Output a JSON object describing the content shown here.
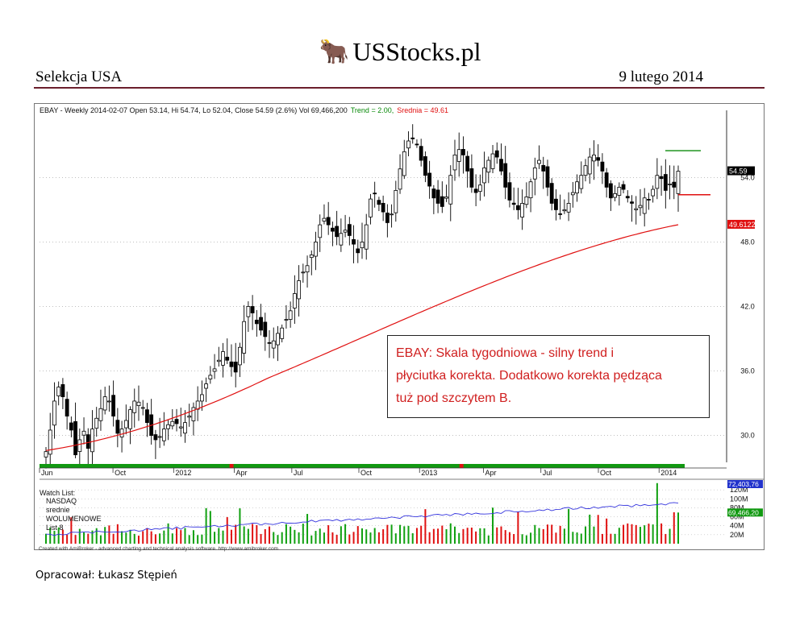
{
  "header": {
    "logo_text": "USStocks.pl",
    "left_title": "Selekcja USA",
    "date": "9 lutego 2014"
  },
  "footer": {
    "author": "Opracował: Łukasz Stępień"
  },
  "colors": {
    "trend": "#0a8a0a",
    "srednia": "#e01010",
    "rule": "#6b1f2c",
    "note_text": "#d02020",
    "volume_line": "#3333dd"
  },
  "chart_data": {
    "type": "candlestick",
    "header": {
      "symbol_line": "EBAY - Weekly 2014-02-07 Open 53.14, Hi 54.74, Lo 52.04, Close 54.59 (2.6%) Vol 69,466,200",
      "trend_text": "Trend = 2.00,",
      "srednia_text": "Srednia = 49.61"
    },
    "y_ticks": [
      30.0,
      36.0,
      42.0,
      48.0,
      54.0
    ],
    "y_tick_labels": [
      "30.0",
      "36.0",
      "42.0",
      "48.0",
      "54.0"
    ],
    "ylim": [
      27.5,
      59.5
    ],
    "x_labels": [
      "Jun",
      "Oct",
      "2012",
      "Apr",
      "Jul",
      "Oct",
      "2013",
      "Apr",
      "Jul",
      "Oct",
      "2014"
    ],
    "price_tag": "54.59",
    "ma_tag": "49.6122",
    "note": {
      "line1": "EBAY: Skala tygodniowa -  silny trend i",
      "line2": "płyciutka korekta. Dodatkowo korekta pędząca",
      "line3": "tuż pod szczytem B."
    },
    "closes": [
      28.5,
      30.5,
      33.2,
      34.5,
      33.6,
      31.8,
      30.5,
      28.2,
      29.6,
      30.4,
      28.8,
      30.6,
      31.6,
      32.5,
      33.6,
      33.2,
      31.8,
      30.2,
      30.6,
      31.4,
      32.4,
      33.2,
      33.1,
      32.6,
      31.2,
      30.0,
      29.6,
      29.9,
      30.6,
      31.0,
      31.3,
      31.1,
      30.8,
      31.2,
      31.8,
      32.6,
      33.2,
      33.8,
      34.8,
      35.6,
      36.2,
      37.0,
      37.8,
      37.0,
      36.4,
      35.9,
      38.2,
      40.6,
      42.0,
      41.4,
      40.4,
      39.8,
      39.2,
      38.6,
      38.8,
      39.5,
      40.0,
      40.8,
      41.6,
      43.2,
      44.4,
      45.2,
      45.8,
      46.8,
      48.0,
      49.6,
      50.2,
      49.6,
      49.0,
      48.5,
      48.8,
      49.1,
      48.6,
      47.8,
      47.0,
      48.0,
      49.6,
      52.0,
      52.5,
      51.5,
      50.8,
      49.8,
      50.6,
      52.8,
      54.8,
      56.4,
      57.4,
      57.6,
      57.1,
      55.6,
      54.2,
      53.2,
      52.1,
      51.6,
      51.3,
      52.2,
      54.2,
      56.1,
      56.6,
      56.1,
      54.6,
      53.1,
      52.6,
      53.3,
      54.9,
      55.6,
      56.2,
      55.9,
      54.6,
      53.1,
      51.9,
      51.5,
      51.0,
      51.6,
      52.2,
      53.6,
      54.9,
      55.6,
      54.6,
      53.1,
      51.6,
      51.0,
      50.6,
      51.0,
      51.6,
      52.6,
      53.6,
      54.2,
      55.1,
      55.9,
      56.1,
      55.6,
      54.6,
      53.1,
      52.1,
      52.5,
      53.1,
      52.9,
      52.1,
      51.6,
      51.1,
      51.4,
      52.1,
      51.9,
      52.9,
      54.2,
      53.9,
      52.8,
      53.4,
      53.1,
      54.59
    ],
    "srednia_start": 28.6,
    "srednia_end": 49.61,
    "trend_level": 56.5,
    "stop_level": 52.4,
    "volume": {
      "watch_list_label": "Watch List:",
      "list_items": [
        "NASDAQ",
        "srednie",
        "WOLUMENOWE",
        "List 8"
      ],
      "y_labels": [
        "120M",
        "100M",
        "80M",
        "60M",
        "40M",
        "20M"
      ],
      "tag_avg": "72,403,76",
      "tag_last": "69,466,20",
      "max_m": 140,
      "last_m": 69.47,
      "avg_m": 72.4
    },
    "credit": "Created with AmiBroker - advanced charting and technical analysis software. http://www.amibroker.com"
  }
}
